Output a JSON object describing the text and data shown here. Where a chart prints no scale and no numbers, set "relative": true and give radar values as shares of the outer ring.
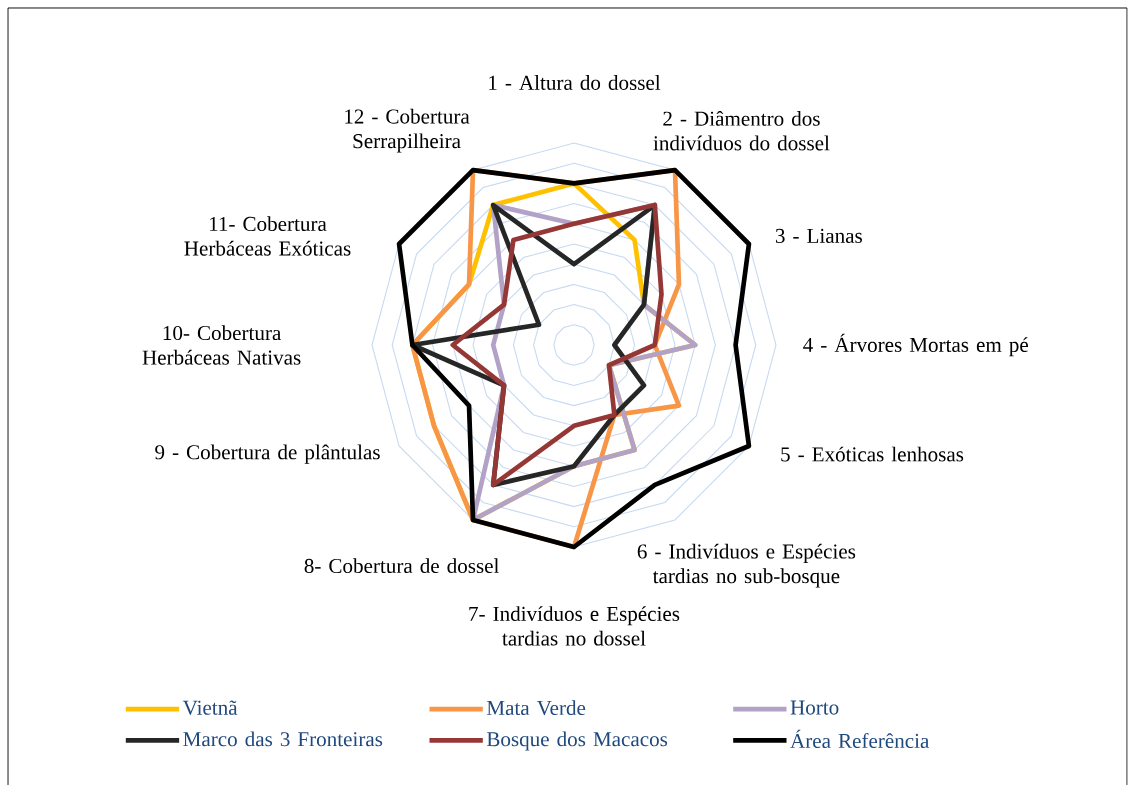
{
  "chart_data": {
    "type": "radar",
    "relative": true,
    "grid": true,
    "legend": "bottom",
    "categories": [
      "1 - Altura do dossel",
      "2 - Diâmentro dos indivíduos do dossel",
      "3 - Lianas",
      "4 - Árvores Mortas em pé",
      "5 - Exóticas lenhosas",
      "6 - Indivíduos e Espécies tardias no sub-bosque",
      "7- Indivíduos e Espécies tardias no dossel",
      "8- Cobertura de dossel",
      "9 - Cobertura de plântulas",
      "10- Cobertura Herbáceas Nativas",
      "11- Cobertura Herbáceas Exóticas",
      "12 - Cobertura Serrapilheira"
    ],
    "series": [
      {
        "name": "Vietnã",
        "color": "#ffc000",
        "values": [
          0.8,
          0.6,
          0.4,
          0.6,
          0.2,
          0.6,
          0.6,
          1.0,
          0.8,
          0.8,
          0.6,
          0.8
        ]
      },
      {
        "name": "Mata Verde",
        "color": "#f79646",
        "values": [
          0.8,
          1.0,
          0.6,
          0.4,
          0.6,
          0.4,
          1.0,
          1.0,
          0.8,
          0.8,
          0.6,
          1.0
        ]
      },
      {
        "name": "Horto",
        "color": "#b3a2c7",
        "values": [
          0.6,
          0.8,
          0.4,
          0.6,
          0.2,
          0.6,
          0.6,
          1.0,
          0.4,
          0.4,
          0.4,
          0.8
        ]
      },
      {
        "name": "Marco das 3 Fronteiras",
        "color": "#262626",
        "values": [
          0.4,
          0.8,
          0.4,
          0.2,
          0.4,
          0.4,
          0.6,
          0.8,
          0.4,
          0.8,
          0.2,
          0.8
        ]
      },
      {
        "name": "Bosque dos Macacos",
        "color": "#953735",
        "values": [
          0.6,
          0.8,
          0.5,
          0.4,
          0.2,
          0.4,
          0.4,
          0.8,
          0.4,
          0.6,
          0.4,
          0.6
        ]
      },
      {
        "name": "Área Referência",
        "color": "#000000",
        "values": [
          0.8,
          1.0,
          1.0,
          0.8,
          1.0,
          0.8,
          1.0,
          1.0,
          0.6,
          0.8,
          1.0,
          1.0
        ]
      }
    ]
  }
}
